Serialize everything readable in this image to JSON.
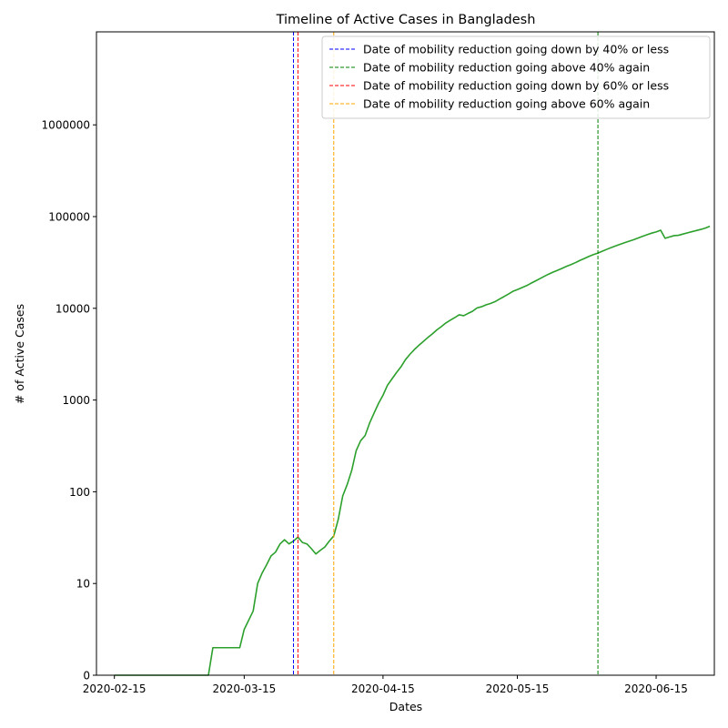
{
  "chart_data": {
    "type": "line",
    "title": "Timeline of Active Cases in Bangladesh",
    "xlabel": "Dates",
    "ylabel": "# of Active Cases",
    "yscale": "symlog",
    "xlim": [
      "2020-02-11",
      "2020-06-28"
    ],
    "x_ticks": [
      "2020-02-15",
      "2020-03-15",
      "2020-04-15",
      "2020-05-15",
      "2020-06-15"
    ],
    "y_ticks": [
      {
        "value": 0,
        "label": "0"
      },
      {
        "value": 10,
        "label": "10"
      },
      {
        "value": 100,
        "label": "100"
      },
      {
        "value": 1000,
        "label": "1000"
      },
      {
        "value": 10000,
        "label": "10000"
      },
      {
        "value": 100000,
        "label": "100000"
      },
      {
        "value": 1000000,
        "label": "1000000"
      }
    ],
    "grid": false,
    "legend_position": "top-right",
    "series": [
      {
        "color": "#2ca02c",
        "points": [
          [
            "2020-02-15",
            0
          ],
          [
            "2020-03-07",
            0
          ],
          [
            "2020-03-08",
            3
          ],
          [
            "2020-03-14",
            3
          ],
          [
            "2020-03-15",
            5
          ],
          [
            "2020-03-17",
            7
          ],
          [
            "2020-03-18",
            10
          ],
          [
            "2020-03-19",
            13
          ],
          [
            "2020-03-20",
            16
          ],
          [
            "2020-03-21",
            20
          ],
          [
            "2020-03-22",
            22
          ],
          [
            "2020-03-23",
            27
          ],
          [
            "2020-03-24",
            30
          ],
          [
            "2020-03-25",
            27
          ],
          [
            "2020-03-26",
            29
          ],
          [
            "2020-03-27",
            32
          ],
          [
            "2020-03-28",
            28
          ],
          [
            "2020-03-29",
            27
          ],
          [
            "2020-03-30",
            24
          ],
          [
            "2020-03-31",
            21
          ],
          [
            "2020-04-01",
            23
          ],
          [
            "2020-04-02",
            25
          ],
          [
            "2020-04-03",
            29
          ],
          [
            "2020-04-04",
            33
          ],
          [
            "2020-04-05",
            50
          ],
          [
            "2020-04-06",
            90
          ],
          [
            "2020-04-07",
            120
          ],
          [
            "2020-04-08",
            170
          ],
          [
            "2020-04-09",
            280
          ],
          [
            "2020-04-10",
            360
          ],
          [
            "2020-04-11",
            410
          ],
          [
            "2020-04-12",
            560
          ],
          [
            "2020-04-13",
            720
          ],
          [
            "2020-04-14",
            920
          ],
          [
            "2020-04-15",
            1130
          ],
          [
            "2020-04-16",
            1450
          ],
          [
            "2020-04-17",
            1700
          ],
          [
            "2020-04-18",
            1990
          ],
          [
            "2020-04-19",
            2300
          ],
          [
            "2020-04-20",
            2750
          ],
          [
            "2020-04-21",
            3150
          ],
          [
            "2020-04-22",
            3550
          ],
          [
            "2020-04-23",
            3950
          ],
          [
            "2020-04-24",
            4350
          ],
          [
            "2020-04-25",
            4800
          ],
          [
            "2020-04-26",
            5250
          ],
          [
            "2020-04-27",
            5800
          ],
          [
            "2020-04-28",
            6300
          ],
          [
            "2020-04-29",
            6900
          ],
          [
            "2020-04-30",
            7400
          ],
          [
            "2020-05-01",
            7900
          ],
          [
            "2020-05-02",
            8500
          ],
          [
            "2020-05-03",
            8300
          ],
          [
            "2020-05-04",
            8800
          ],
          [
            "2020-05-05",
            9300
          ],
          [
            "2020-05-06",
            10100
          ],
          [
            "2020-05-07",
            10400
          ],
          [
            "2020-05-08",
            10900
          ],
          [
            "2020-05-09",
            11300
          ],
          [
            "2020-05-10",
            11800
          ],
          [
            "2020-05-11",
            12600
          ],
          [
            "2020-05-12",
            13400
          ],
          [
            "2020-05-13",
            14300
          ],
          [
            "2020-05-14",
            15300
          ],
          [
            "2020-05-15",
            16000
          ],
          [
            "2020-05-16",
            16800
          ],
          [
            "2020-05-17",
            17600
          ],
          [
            "2020-05-18",
            18700
          ],
          [
            "2020-05-19",
            19800
          ],
          [
            "2020-05-20",
            21000
          ],
          [
            "2020-05-21",
            22300
          ],
          [
            "2020-05-22",
            23600
          ],
          [
            "2020-05-23",
            24800
          ],
          [
            "2020-05-24",
            26000
          ],
          [
            "2020-05-25",
            27300
          ],
          [
            "2020-05-26",
            28700
          ],
          [
            "2020-05-27",
            30000
          ],
          [
            "2020-05-28",
            31500
          ],
          [
            "2020-05-29",
            33300
          ],
          [
            "2020-05-30",
            35000
          ],
          [
            "2020-05-31",
            36800
          ],
          [
            "2020-06-01",
            38500
          ],
          [
            "2020-06-02",
            40000
          ],
          [
            "2020-06-03",
            42000
          ],
          [
            "2020-06-04",
            44000
          ],
          [
            "2020-06-05",
            46000
          ],
          [
            "2020-06-06",
            48000
          ],
          [
            "2020-06-07",
            50000
          ],
          [
            "2020-06-08",
            52000
          ],
          [
            "2020-06-09",
            54000
          ],
          [
            "2020-06-10",
            56000
          ],
          [
            "2020-06-11",
            58500
          ],
          [
            "2020-06-12",
            61000
          ],
          [
            "2020-06-13",
            63500
          ],
          [
            "2020-06-14",
            66000
          ],
          [
            "2020-06-15",
            68000
          ],
          [
            "2020-06-16",
            71000
          ],
          [
            "2020-06-17",
            58000
          ],
          [
            "2020-06-18",
            60000
          ],
          [
            "2020-06-19",
            62000
          ],
          [
            "2020-06-20",
            62500
          ],
          [
            "2020-06-21",
            64500
          ],
          [
            "2020-06-22",
            66500
          ],
          [
            "2020-06-23",
            68500
          ],
          [
            "2020-06-24",
            70500
          ],
          [
            "2020-06-25",
            72500
          ],
          [
            "2020-06-26",
            75000
          ],
          [
            "2020-06-27",
            78500
          ]
        ]
      }
    ],
    "vlines": [
      {
        "date": "2020-03-26",
        "color": "#0000ff",
        "label": "Date of mobility reduction going down by 40% or less"
      },
      {
        "date": "2020-06-02",
        "color": "#008000",
        "label": "Date of mobility reduction going above 40% again"
      },
      {
        "date": "2020-03-27",
        "color": "#ff0000",
        "label": "Date of mobility reduction going down by 60% or less"
      },
      {
        "date": "2020-04-04",
        "color": "#ffa500",
        "label": "Date of mobility reduction going above 60% again"
      }
    ]
  }
}
